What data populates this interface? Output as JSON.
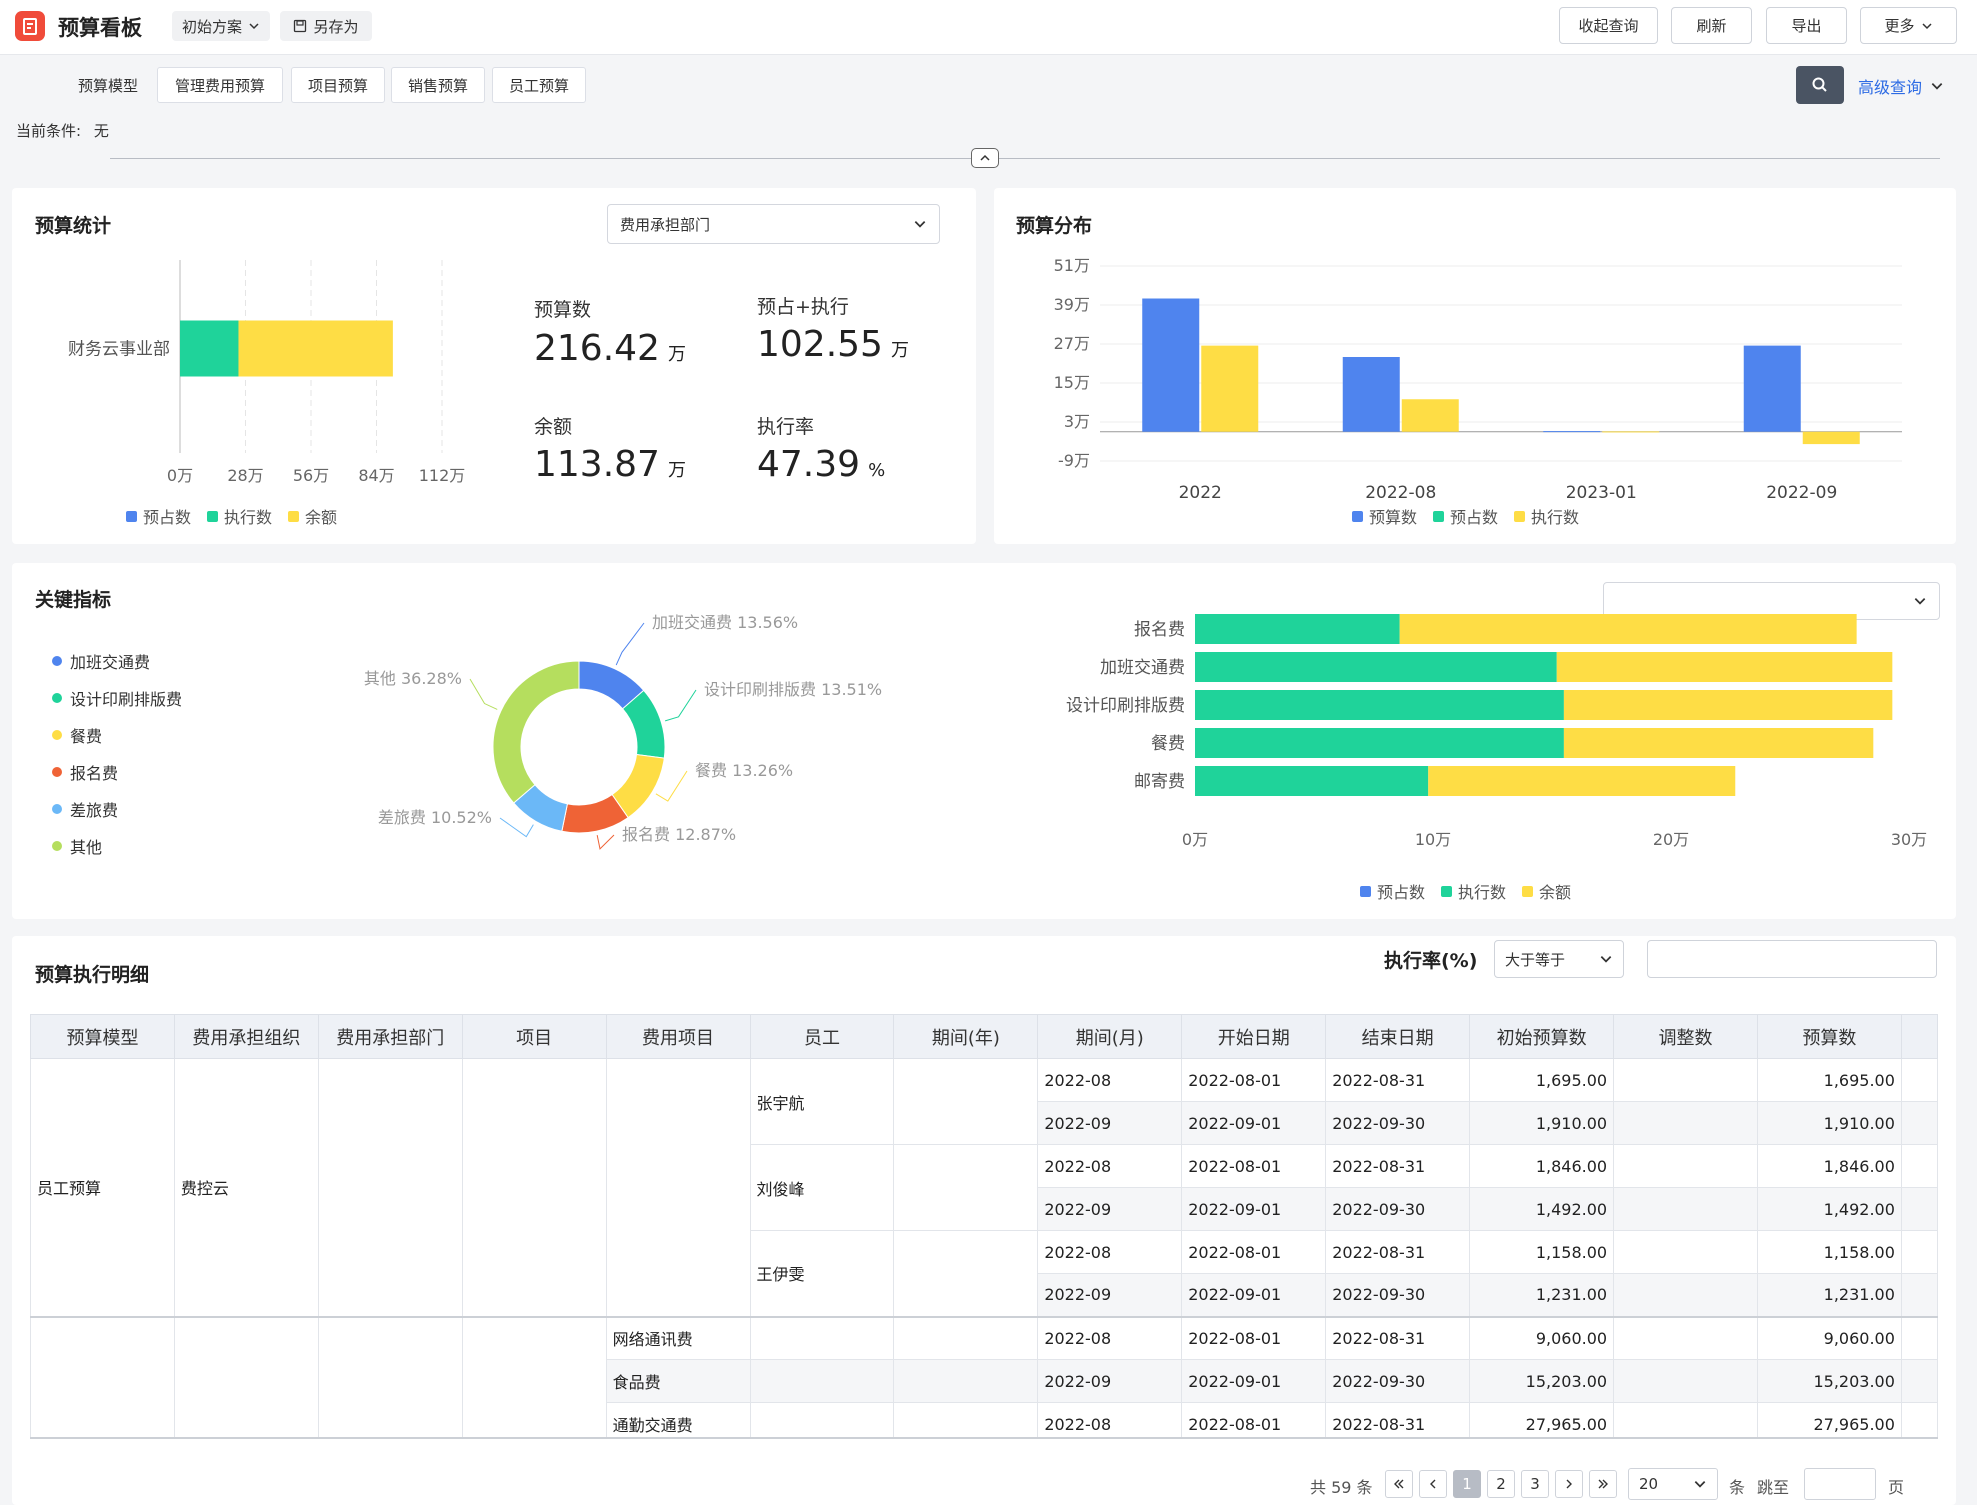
{
  "header": {
    "title": "预算看板",
    "scheme": "初始方案",
    "save_as": "另存为",
    "buttons": [
      "收起查询",
      "刷新",
      "导出",
      "更多"
    ]
  },
  "tabs": [
    "预算模型",
    "管理费用预算",
    "项目预算",
    "销售预算",
    "员工预算"
  ],
  "query": {
    "advanced": "高级查询",
    "condition_label": "当前条件:",
    "condition_value": "无"
  },
  "stats": {
    "title": "预算统计",
    "dept_select": "费用承担部门",
    "budget_label": "预算数",
    "budget_value": "216.42",
    "budget_unit": "万",
    "pre_label": "预占+执行",
    "pre_value": "102.55",
    "pre_unit": "万",
    "rest_label": "余额",
    "rest_value": "113.87",
    "rest_unit": "万",
    "rate_label": "执行率",
    "rate_value": "47.39",
    "rate_unit": "%"
  },
  "dist": {
    "title": "预算分布"
  },
  "kpi": {
    "title": "关键指标",
    "select_value": ""
  },
  "colors": {
    "blue": "#4f84ee",
    "green": "#1fd39a",
    "yellow": "#fedd45",
    "orange": "#ef6336",
    "lightblue": "#6bb8f7",
    "lime": "#b5de5e"
  },
  "chart_data": [
    {
      "type": "bar",
      "orientation": "horizontal",
      "stacked": true,
      "categories": [
        "财务云事业部"
      ],
      "series": [
        {
          "name": "预占数",
          "values": [
            0
          ]
        },
        {
          "name": "执行数",
          "values": [
            25
          ]
        },
        {
          "name": "余额",
          "values": [
            66
          ]
        }
      ],
      "xticks": [
        "0万",
        "28万",
        "56万",
        "84万",
        "112万"
      ],
      "xlim": [
        0,
        112
      ],
      "legend": "bottom"
    },
    {
      "type": "bar",
      "categories": [
        "2022",
        "2022-08",
        "2023-01",
        "2022-09"
      ],
      "series": [
        {
          "name": "预算数",
          "values": [
            41,
            23,
            0.2,
            26.5
          ]
        },
        {
          "name": "预占数",
          "values": [
            0,
            0,
            0,
            0
          ]
        },
        {
          "name": "执行数",
          "values": [
            26.5,
            10,
            0.1,
            -3.8
          ]
        }
      ],
      "yticks": [
        "51万",
        "39万",
        "27万",
        "15万",
        "3万",
        "-9万"
      ],
      "ylim": [
        -9,
        51
      ],
      "legend": "bottom"
    },
    {
      "type": "pie",
      "donut": true,
      "labels": [
        "加班交通费",
        "设计印刷排版费",
        "餐费",
        "报名费",
        "差旅费",
        "其他"
      ],
      "values": [
        13.56,
        13.51,
        13.26,
        12.87,
        10.52,
        36.28
      ],
      "slice_labels": [
        "加班交通费 13.56%",
        "设计印刷排版费 13.51%",
        "餐费 13.26%",
        "报名费 12.87%",
        "差旅费 10.52%",
        "其他 36.28%"
      ],
      "legend": "left"
    },
    {
      "type": "bar",
      "orientation": "horizontal",
      "stacked": true,
      "categories": [
        "报名费",
        "加班交通费",
        "设计印刷排版费",
        "餐费",
        "邮寄费"
      ],
      "series": [
        {
          "name": "预占数",
          "values": [
            0,
            0,
            0,
            0,
            0
          ]
        },
        {
          "name": "执行数",
          "values": [
            8.6,
            15.2,
            15.5,
            15.5,
            9.8
          ]
        },
        {
          "name": "余额",
          "values": [
            19.2,
            14.1,
            13.8,
            13.0,
            12.9
          ]
        }
      ],
      "xticks": [
        "0万",
        "10万",
        "20万",
        "30万"
      ],
      "xlim": [
        0,
        30
      ],
      "legend": "bottom"
    }
  ],
  "detail": {
    "title": "预算执行明细",
    "filter_label": "执行率(%)",
    "filter_op": "大于等于",
    "filter_value": "",
    "columns": [
      "预算模型",
      "费用承担组织",
      "费用承担部门",
      "项目",
      "费用项目",
      "员工",
      "期间(年)",
      "期间(月)",
      "开始日期",
      "结束日期",
      "初始预算数",
      "调整数",
      "预算数"
    ],
    "group": {
      "model": "员工预算",
      "org": "费控云"
    },
    "employees": [
      "张宇航",
      "刘俊峰",
      "王伊雯"
    ],
    "rows": [
      {
        "month": "2022-08",
        "start": "2022-08-01",
        "end": "2022-08-31",
        "init": "1,695.00",
        "budget": "1,695.00"
      },
      {
        "month": "2022-09",
        "start": "2022-09-01",
        "end": "2022-09-30",
        "init": "1,910.00",
        "budget": "1,910.00"
      },
      {
        "month": "2022-08",
        "start": "2022-08-01",
        "end": "2022-08-31",
        "init": "1,846.00",
        "budget": "1,846.00"
      },
      {
        "month": "2022-09",
        "start": "2022-09-01",
        "end": "2022-09-30",
        "init": "1,492.00",
        "budget": "1,492.00"
      },
      {
        "month": "2022-08",
        "start": "2022-08-01",
        "end": "2022-08-31",
        "init": "1,158.00",
        "budget": "1,158.00"
      },
      {
        "month": "2022-09",
        "start": "2022-09-01",
        "end": "2022-09-30",
        "init": "1,231.00",
        "budget": "1,231.00"
      }
    ],
    "rows2": [
      {
        "item": "网络通讯费",
        "month": "2022-08",
        "start": "2022-08-01",
        "end": "2022-08-31",
        "init": "9,060.00",
        "budget": "9,060.00"
      },
      {
        "item": "食品费",
        "month": "2022-09",
        "start": "2022-09-01",
        "end": "2022-09-30",
        "init": "15,203.00",
        "budget": "15,203.00"
      },
      {
        "item": "通勤交通费",
        "month": "2022-08",
        "start": "2022-08-01",
        "end": "2022-08-31",
        "init": "27,965.00",
        "budget": "27,965.00"
      }
    ]
  },
  "pagination": {
    "total": "共 59 条",
    "pages": [
      "1",
      "2",
      "3"
    ],
    "page_size": "20",
    "unit": "条",
    "goto": "跳至",
    "page_unit": "页"
  }
}
